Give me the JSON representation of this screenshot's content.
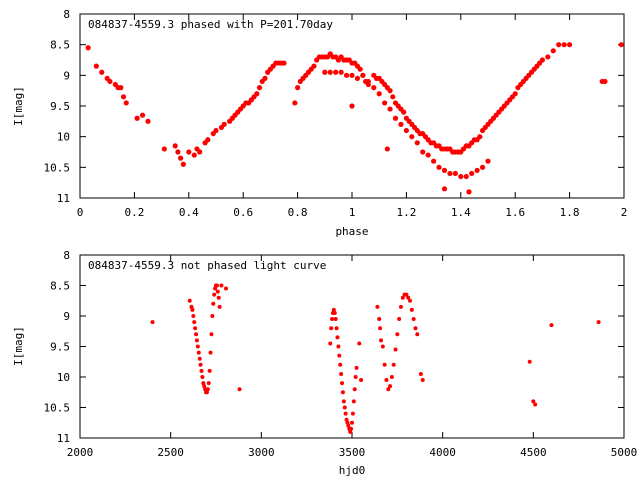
{
  "chart_data": [
    {
      "type": "scatter",
      "title": "084837-4559.3 phased with P=201.70day",
      "xlabel": "phase",
      "ylabel": "I[mag]",
      "xlim": [
        0,
        2
      ],
      "ylim": [
        11,
        8
      ],
      "y_inverted": true,
      "grid": false,
      "marker_color": "#ff0000",
      "xticks": [
        "0",
        "0.2",
        "0.4",
        "0.6",
        "0.8",
        "1",
        "1.2",
        "1.4",
        "1.6",
        "1.8",
        "2"
      ],
      "yticks": [
        "8",
        "8.5",
        "9",
        "9.5",
        "10",
        "10.5",
        "11"
      ],
      "x": [
        0.03,
        0.06,
        0.08,
        0.1,
        0.11,
        0.13,
        0.14,
        0.15,
        0.16,
        0.17,
        0.21,
        0.23,
        0.25,
        0.31,
        0.35,
        0.36,
        0.37,
        0.38,
        0.4,
        0.42,
        0.43,
        0.44,
        0.46,
        0.47,
        0.49,
        0.5,
        0.52,
        0.53,
        0.55,
        0.56,
        0.57,
        0.58,
        0.59,
        0.6,
        0.61,
        0.62,
        0.63,
        0.64,
        0.65,
        0.66,
        0.67,
        0.68,
        0.69,
        0.7,
        0.71,
        0.72,
        0.73,
        0.74,
        0.75,
        0.79,
        0.8,
        0.81,
        0.82,
        0.83,
        0.84,
        0.85,
        0.86,
        0.87,
        0.88,
        0.89,
        0.9,
        0.91,
        0.92,
        0.93,
        0.94,
        0.95,
        0.96,
        0.97,
        0.98,
        0.99,
        1.0,
        1.01,
        1.02,
        1.03,
        1.04,
        1.05,
        1.06,
        1.08,
        1.09,
        1.1,
        1.11,
        1.12,
        1.13,
        1.14,
        1.15,
        1.16,
        1.17,
        1.18,
        1.19,
        1.2,
        1.21,
        1.22,
        1.23,
        1.24,
        1.25,
        1.26,
        1.27,
        1.28,
        1.29,
        1.3,
        1.31,
        1.32,
        1.33,
        1.34,
        1.35,
        1.36,
        1.37,
        1.38,
        1.39,
        1.4,
        1.41,
        1.42,
        1.43,
        1.44,
        1.45,
        1.46,
        1.47,
        1.48,
        1.49,
        1.5,
        1.51,
        1.52,
        1.53,
        1.54,
        1.55,
        1.56,
        1.57,
        1.58,
        1.59,
        1.6,
        1.61,
        1.62,
        1.63,
        1.64,
        1.65,
        1.66,
        1.67,
        1.68,
        1.69,
        1.7,
        1.72,
        1.74,
        1.76,
        1.78,
        1.8,
        1.92,
        1.93,
        1.99,
        0.9,
        0.92,
        0.94,
        0.96,
        0.98,
        1.0,
        1.02,
        1.04,
        1.06,
        1.08,
        1.1,
        1.12,
        1.14,
        1.16,
        1.18,
        1.2,
        1.22,
        1.24,
        1.26,
        1.28,
        1.3,
        1.32,
        1.34,
        1.36,
        1.38,
        1.4,
        1.42,
        1.44,
        1.46,
        1.48,
        1.5,
        1.0,
        1.13,
        1.34,
        1.43
      ],
      "y": [
        8.55,
        8.85,
        8.95,
        9.05,
        9.1,
        9.15,
        9.2,
        9.2,
        9.35,
        9.45,
        9.7,
        9.65,
        9.75,
        10.2,
        10.15,
        10.25,
        10.35,
        10.45,
        10.25,
        10.3,
        10.2,
        10.25,
        10.1,
        10.05,
        9.95,
        9.9,
        9.85,
        9.8,
        9.75,
        9.7,
        9.65,
        9.6,
        9.55,
        9.5,
        9.45,
        9.45,
        9.4,
        9.35,
        9.3,
        9.2,
        9.1,
        9.05,
        8.95,
        8.9,
        8.85,
        8.8,
        8.8,
        8.8,
        8.8,
        9.45,
        9.2,
        9.1,
        9.05,
        9.0,
        8.95,
        8.9,
        8.85,
        8.75,
        8.7,
        8.7,
        8.7,
        8.7,
        8.65,
        8.7,
        8.7,
        8.75,
        8.7,
        8.75,
        8.75,
        8.75,
        8.8,
        8.8,
        8.85,
        8.9,
        9.0,
        9.1,
        9.15,
        9.0,
        9.05,
        9.05,
        9.1,
        9.15,
        9.2,
        9.25,
        9.35,
        9.45,
        9.5,
        9.55,
        9.6,
        9.7,
        9.75,
        9.8,
        9.85,
        9.9,
        9.95,
        9.95,
        10.0,
        10.05,
        10.1,
        10.1,
        10.15,
        10.15,
        10.2,
        10.2,
        10.2,
        10.2,
        10.25,
        10.25,
        10.25,
        10.25,
        10.2,
        10.15,
        10.15,
        10.1,
        10.05,
        10.05,
        10.0,
        9.9,
        9.85,
        9.8,
        9.75,
        9.7,
        9.65,
        9.6,
        9.55,
        9.5,
        9.45,
        9.4,
        9.35,
        9.3,
        9.2,
        9.15,
        9.1,
        9.05,
        9.0,
        8.95,
        8.9,
        8.85,
        8.8,
        8.75,
        8.7,
        8.6,
        8.5,
        8.5,
        8.5,
        9.1,
        9.1,
        8.5,
        8.95,
        8.95,
        8.95,
        8.95,
        9.0,
        9.0,
        9.05,
        9.0,
        9.1,
        9.2,
        9.3,
        9.45,
        9.55,
        9.7,
        9.8,
        9.9,
        10.0,
        10.1,
        10.25,
        10.3,
        10.4,
        10.5,
        10.55,
        10.6,
        10.6,
        10.65,
        10.65,
        10.6,
        10.55,
        10.5,
        10.4,
        9.5,
        10.2,
        10.85,
        10.9
      ]
    },
    {
      "type": "scatter",
      "title": "084837-4559.3 not phased light curve",
      "xlabel": "hjd0",
      "ylabel": "I[mag]",
      "xlim": [
        2000,
        5000
      ],
      "ylim": [
        11,
        8
      ],
      "y_inverted": true,
      "grid": false,
      "marker_color": "#ff0000",
      "xticks": [
        "2000",
        "2500",
        "3000",
        "3500",
        "4000",
        "4500",
        "5000"
      ],
      "yticks": [
        "8",
        "8.5",
        "9",
        "9.5",
        "10",
        "10.5",
        "11"
      ],
      "x": [
        2400,
        2605,
        2615,
        2620,
        2625,
        2630,
        2635,
        2640,
        2645,
        2650,
        2655,
        2660,
        2665,
        2670,
        2675,
        2680,
        2685,
        2690,
        2695,
        2700,
        2705,
        2710,
        2715,
        2720,
        2725,
        2730,
        2735,
        2740,
        2745,
        2750,
        2755,
        2760,
        2765,
        2770,
        2780,
        2805,
        2880,
        3380,
        3385,
        3390,
        3395,
        3400,
        3405,
        3410,
        3415,
        3420,
        3425,
        3430,
        3435,
        3440,
        3445,
        3450,
        3455,
        3460,
        3465,
        3470,
        3475,
        3480,
        3485,
        3490,
        3495,
        3500,
        3505,
        3510,
        3515,
        3520,
        3525,
        3540,
        3550,
        3640,
        3650,
        3655,
        3660,
        3670,
        3680,
        3690,
        3700,
        3710,
        3720,
        3730,
        3740,
        3750,
        3760,
        3770,
        3780,
        3790,
        3800,
        3810,
        3820,
        3830,
        3840,
        3850,
        3860,
        3880,
        3890,
        4480,
        4500,
        4510,
        4600,
        4860
      ],
      "y": [
        9.1,
        8.75,
        8.85,
        8.9,
        9.0,
        9.1,
        9.2,
        9.3,
        9.4,
        9.5,
        9.6,
        9.7,
        9.8,
        9.9,
        10.0,
        10.1,
        10.15,
        10.2,
        10.25,
        10.25,
        10.2,
        10.1,
        9.9,
        9.6,
        9.3,
        9.0,
        8.8,
        8.65,
        8.55,
        8.5,
        8.5,
        8.6,
        8.7,
        8.85,
        8.5,
        8.55,
        10.2,
        9.45,
        9.2,
        9.05,
        8.95,
        8.9,
        8.95,
        9.05,
        9.2,
        9.35,
        9.5,
        9.65,
        9.8,
        9.95,
        10.1,
        10.25,
        10.4,
        10.5,
        10.6,
        10.7,
        10.75,
        10.8,
        10.85,
        10.9,
        10.85,
        10.75,
        10.6,
        10.4,
        10.2,
        10.0,
        9.85,
        9.45,
        10.05,
        8.85,
        9.05,
        9.2,
        9.4,
        9.5,
        9.8,
        10.05,
        10.2,
        10.15,
        10.0,
        9.8,
        9.55,
        9.3,
        9.05,
        8.85,
        8.7,
        8.65,
        8.65,
        8.7,
        8.75,
        8.9,
        9.05,
        9.2,
        9.3,
        9.95,
        10.05,
        9.75,
        10.4,
        10.45,
        9.15,
        9.1
      ]
    }
  ]
}
